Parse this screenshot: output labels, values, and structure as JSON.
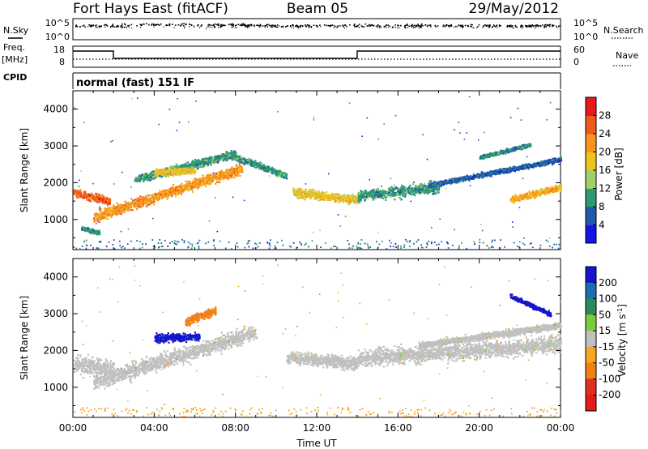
{
  "header": {
    "station": "Fort Hays East (fitACF)",
    "beam": "Beam 05",
    "date": "29/May/2012"
  },
  "noise_panel": {
    "left_label": "N.Sky",
    "right_label": "N.Search",
    "left_ticks": [
      "10^5",
      "10^0"
    ],
    "right_ticks": [
      "10^5",
      "10^0"
    ]
  },
  "freq_panel": {
    "left_label_1": "Freq.",
    "left_label_2": "[MHz]",
    "right_label": "Nave",
    "left_ticks": [
      "18",
      "8"
    ],
    "right_ticks": [
      "60",
      "0"
    ]
  },
  "cpid": {
    "label": "CPID",
    "value": "normal (fast) 151 IF"
  },
  "colors": {
    "power": [
      "#1414e6",
      "#1f5aa8",
      "#2e9a72",
      "#9fd06a",
      "#f0c21e",
      "#f7941d",
      "#ee5a1a",
      "#e41a1c"
    ],
    "velocity": [
      "#1414d0",
      "#1a6fb0",
      "#2e8b57",
      "#7ccd3c",
      "#c0c0c0",
      "#f5a623",
      "#f07f1a",
      "#e0301e",
      "#e41a1c"
    ]
  },
  "chart_data": [
    {
      "type": "heatmap",
      "title": "Fort Hays East (fitACF)  Beam 05  29/May/2012",
      "xlabel": "Time UT",
      "ylabel": "Slant Range [km]",
      "xlim": [
        0,
        24
      ],
      "ylim": [
        180,
        4500
      ],
      "x_tick_values": [
        0,
        4,
        8,
        12,
        16,
        20,
        24
      ],
      "x_tick_labels": [
        "00:00",
        "04:00",
        "08:00",
        "12:00",
        "16:00",
        "20:00",
        "00:00"
      ],
      "y_tick_values": [
        1000,
        2000,
        3000,
        4000
      ],
      "y_tick_labels": [
        "1000",
        "2000",
        "3000",
        "4000"
      ],
      "colorbar": {
        "label": "Power [dB]",
        "range": [
          0,
          32
        ],
        "tick_values": [
          4,
          8,
          12,
          16,
          20,
          24,
          28
        ],
        "tick_labels": [
          "4",
          "8",
          "12",
          "16",
          "20",
          "24",
          "28"
        ]
      },
      "features": [
        {
          "t0": 0.0,
          "t1": 1.8,
          "r0": 1750,
          "r1": 1500,
          "w": 200,
          "val": 26
        },
        {
          "t0": 0.4,
          "t1": 1.3,
          "r0": 780,
          "r1": 640,
          "w": 110,
          "val": 10
        },
        {
          "t0": 1.0,
          "t1": 8.3,
          "r0": 1080,
          "r1": 2400,
          "w": 260,
          "val": 22
        },
        {
          "t0": 3.0,
          "t1": 8.0,
          "r0": 2100,
          "r1": 2800,
          "w": 200,
          "val": 10
        },
        {
          "t0": 4.0,
          "t1": 6.0,
          "r0": 2300,
          "r1": 2350,
          "w": 180,
          "val": 18
        },
        {
          "t0": 7.5,
          "t1": 10.5,
          "r0": 2800,
          "r1": 2200,
          "w": 160,
          "val": 10
        },
        {
          "t0": 10.8,
          "t1": 14.0,
          "r0": 1750,
          "r1": 1550,
          "w": 220,
          "val": 18
        },
        {
          "t0": 14.0,
          "t1": 18.0,
          "r0": 1650,
          "r1": 1900,
          "w": 280,
          "val": 10
        },
        {
          "t0": 17.5,
          "t1": 24.0,
          "r0": 1950,
          "r1": 2650,
          "w": 120,
          "val": 6
        },
        {
          "t0": 21.5,
          "t1": 24.0,
          "r0": 1550,
          "r1": 1900,
          "w": 170,
          "val": 20
        },
        {
          "t0": 20.0,
          "t1": 22.5,
          "r0": 2700,
          "r1": 3050,
          "w": 90,
          "val": 9
        }
      ]
    },
    {
      "type": "heatmap",
      "xlabel": "Time UT",
      "ylabel": "Slant Range [km]",
      "xlim": [
        0,
        24
      ],
      "ylim": [
        180,
        4500
      ],
      "x_tick_values": [
        0,
        4,
        8,
        12,
        16,
        20,
        24
      ],
      "x_tick_labels": [
        "00:00",
        "04:00",
        "08:00",
        "12:00",
        "16:00",
        "20:00",
        "00:00"
      ],
      "y_tick_values": [
        1000,
        2000,
        3000,
        4000
      ],
      "y_tick_labels": [
        "1000",
        "2000",
        "3000",
        "4000"
      ],
      "colorbar": {
        "label": "Velocity [m s^-1]",
        "range": [
          -250,
          250
        ],
        "tick_labels": [
          "200",
          "100",
          "50",
          "15",
          "-15",
          "-50",
          "-100",
          "-200"
        ]
      },
      "features": [
        {
          "t0": 0.0,
          "t1": 2.0,
          "r0": 1650,
          "r1": 1500,
          "w": 420,
          "val": 0
        },
        {
          "t0": 1.0,
          "t1": 9.0,
          "r0": 1150,
          "r1": 2500,
          "w": 420,
          "val": 0
        },
        {
          "t0": 4.0,
          "t1": 6.2,
          "r0": 2350,
          "r1": 2400,
          "w": 200,
          "val": 210
        },
        {
          "t0": 5.5,
          "t1": 7.0,
          "r0": 2800,
          "r1": 3100,
          "w": 200,
          "val": -60
        },
        {
          "t0": 10.5,
          "t1": 14.0,
          "r0": 1850,
          "r1": 1650,
          "w": 320,
          "val": 0
        },
        {
          "t0": 14.0,
          "t1": 24.0,
          "r0": 1800,
          "r1": 2200,
          "w": 420,
          "val": 0
        },
        {
          "t0": 17.0,
          "t1": 24.0,
          "r0": 2150,
          "r1": 2700,
          "w": 160,
          "val": 0
        },
        {
          "t0": 21.5,
          "t1": 23.5,
          "r0": 3500,
          "r1": 3000,
          "w": 110,
          "val": 230
        }
      ]
    }
  ]
}
